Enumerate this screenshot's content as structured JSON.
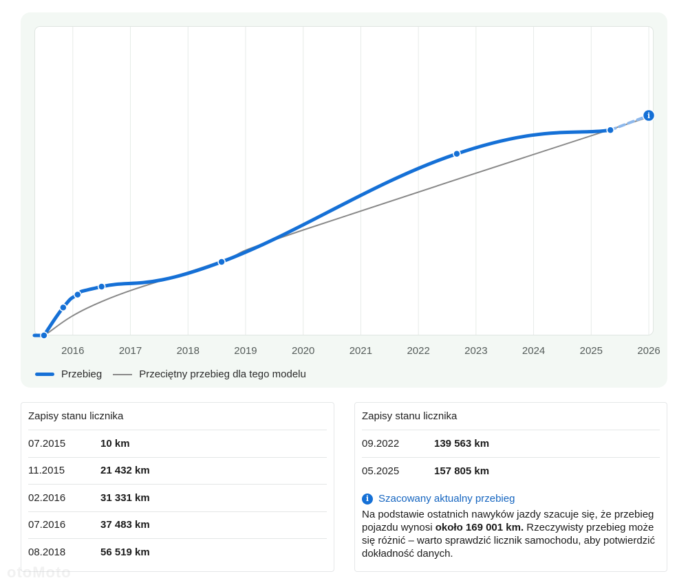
{
  "chart_data": {
    "type": "line",
    "x_ticks": [
      "2016",
      "2017",
      "2018",
      "2019",
      "2020",
      "2021",
      "2022",
      "2023",
      "2024",
      "2025",
      "2026"
    ],
    "xlim": [
      "2015-05",
      "2026-02"
    ],
    "series": [
      {
        "name": "Przebieg",
        "color": "#1570d6",
        "points": [
          {
            "date": "2015-07",
            "km": 10
          },
          {
            "date": "2015-11",
            "km": 21432
          },
          {
            "date": "2016-02",
            "km": 31331
          },
          {
            "date": "2016-07",
            "km": 37483
          },
          {
            "date": "2018-08",
            "km": 56519
          },
          {
            "date": "2022-09",
            "km": 139563
          },
          {
            "date": "2025-05",
            "km": 157805
          }
        ],
        "estimate": {
          "date": "2026-01",
          "km": 169001
        }
      },
      {
        "name": "Przeciętny przebieg dla tego modelu",
        "color": "#888888",
        "points": [
          {
            "date": "2015-07",
            "km": 0
          },
          {
            "date": "2016-07",
            "km": 26000
          },
          {
            "date": "2018-07",
            "km": 56000
          },
          {
            "date": "2020-01",
            "km": 81000
          },
          {
            "date": "2026-02",
            "km": 169001
          }
        ]
      }
    ],
    "grid": true,
    "legend_position": "bottom-left"
  },
  "legend": {
    "series1": "Przebieg",
    "series2": "Przeciętny przebieg dla tego modelu"
  },
  "records_left": {
    "title": "Zapisy stanu licznika",
    "rows": [
      {
        "date": "07.2015",
        "value": "10 km"
      },
      {
        "date": "11.2015",
        "value": "21 432 km"
      },
      {
        "date": "02.2016",
        "value": "31 331 km"
      },
      {
        "date": "07.2016",
        "value": "37 483 km"
      },
      {
        "date": "08.2018",
        "value": "56 519 km"
      }
    ]
  },
  "records_right": {
    "title": "Zapisy stanu licznika",
    "rows": [
      {
        "date": "09.2022",
        "value": "139 563 km"
      },
      {
        "date": "05.2025",
        "value": "157 805 km"
      }
    ],
    "estimate": {
      "icon": "info-icon",
      "title": "Szacowany aktualny przebieg",
      "text_before": "Na podstawie ostatnich nawyków jazdy szacuje się, że przebieg pojazdu wynosi ",
      "text_bold": "około 169 001 km.",
      "text_after": " Rzeczywisty przebieg może się różnić – warto sprawdzić licznik samochodu, aby potwierdzić dokładność danych."
    }
  },
  "watermark": "otoMoto"
}
